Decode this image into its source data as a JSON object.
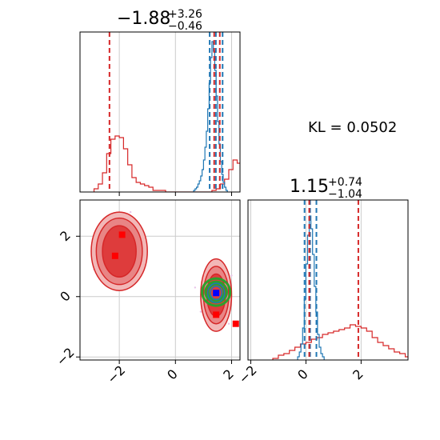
{
  "chart_data": {
    "type": "corner",
    "annotation": "KL = 0.0502",
    "colors": {
      "red": "#d62728",
      "blue": "#1f77b4",
      "green": "#2ca02c",
      "grid": "#cccccc",
      "red_fill_light": "#f2b7b7",
      "red_fill_mid": "#e88585",
      "red_fill_dark": "#de3c3c"
    },
    "grid": true,
    "panels": [
      {
        "id": "marginal-x",
        "type": "histogram",
        "title_main": "−1.88",
        "title_sup": "+3.26",
        "title_sub": "−0.46",
        "xlim": [
          -3.4,
          2.3
        ],
        "ylim": [
          0,
          1.0
        ],
        "red_hist": {
          "bin_width": 0.15,
          "start": -2.9,
          "values": [
            0.02,
            0.05,
            0.12,
            0.24,
            0.33,
            0.35,
            0.34,
            0.27,
            0.17,
            0.09,
            0.06,
            0.05,
            0.04,
            0.03,
            0.01,
            0.01,
            0.01,
            0.0,
            0.0,
            0.0,
            0.0,
            0.0,
            0.0,
            0.0,
            0.0,
            0.0,
            0.0,
            0.0,
            0.01,
            0.02,
            0.05,
            0.08,
            0.14,
            0.2,
            0.18,
            0.12,
            0.06,
            0.03,
            0.01
          ]
        },
        "blue_hist": {
          "bin_width": 0.05,
          "start": 0.65,
          "values": [
            0.01,
            0.02,
            0.03,
            0.05,
            0.07,
            0.1,
            0.14,
            0.2,
            0.28,
            0.38,
            0.52,
            0.68,
            0.84,
            0.94,
            0.88,
            0.76,
            0.6,
            0.44,
            0.3,
            0.19,
            0.11,
            0.06,
            0.03,
            0.01
          ]
        },
        "red_lines": [
          -2.35,
          1.38,
          1.58
        ],
        "blue_lines": [
          1.22,
          1.44,
          1.68
        ]
      },
      {
        "id": "joint",
        "type": "contour",
        "xlim": [
          -3.4,
          2.3
        ],
        "ylim": [
          -2.1,
          3.2
        ],
        "xticks": [
          -2,
          0,
          2
        ],
        "yticks": [
          -2,
          0,
          2
        ],
        "red_mode_a": {
          "center": [
            -2.0,
            1.5
          ],
          "radii": [
            [
              1.0,
              1.3
            ],
            [
              0.82,
              1.1
            ],
            [
              0.6,
              0.85
            ]
          ]
        },
        "red_mode_b": {
          "center": [
            1.45,
            0.05
          ],
          "radii": [
            [
              0.55,
              1.2
            ],
            [
              0.45,
              0.95
            ],
            [
              0.33,
              0.7
            ]
          ]
        },
        "blue_core": {
          "center": [
            1.45,
            0.12
          ],
          "radii": [
            [
              0.3,
              0.32
            ],
            [
              0.2,
              0.22
            ]
          ]
        },
        "green_core": {
          "center": [
            1.45,
            0.15
          ],
          "radii": [
            [
              0.5,
              0.45
            ],
            [
              0.38,
              0.34
            ],
            [
              0.28,
              0.26
            ]
          ]
        },
        "red_markers": [
          [
            -1.9,
            2.05
          ],
          [
            -2.15,
            1.35
          ],
          [
            1.45,
            -0.6
          ],
          [
            2.15,
            -0.9
          ]
        ],
        "blue_marker": [
          1.45,
          0.12
        ]
      },
      {
        "id": "marginal-y",
        "type": "histogram",
        "title_main": "1.15",
        "title_sup": "+0.74",
        "title_sub": "−1.04",
        "xlim": [
          -2.1,
          3.7
        ],
        "ylim": [
          0,
          1.0
        ],
        "xticks": [
          -2,
          0,
          2
        ],
        "red_hist": {
          "bin_width": 0.2,
          "start": -1.2,
          "values": [
            0.01,
            0.03,
            0.04,
            0.06,
            0.08,
            0.1,
            0.11,
            0.13,
            0.14,
            0.16,
            0.17,
            0.18,
            0.19,
            0.2,
            0.22,
            0.21,
            0.2,
            0.18,
            0.14,
            0.11,
            0.09,
            0.07,
            0.05,
            0.04,
            0.02
          ]
        },
        "blue_hist": {
          "bin_width": 0.06,
          "start": -0.3,
          "values": [
            0.02,
            0.05,
            0.1,
            0.2,
            0.38,
            0.6,
            0.78,
            0.9,
            0.82,
            0.66,
            0.46,
            0.3,
            0.16,
            0.08,
            0.04,
            0.02
          ]
        },
        "red_lines": [
          0.12,
          1.9
        ],
        "blue_lines": [
          -0.05,
          0.15,
          0.38
        ]
      }
    ]
  }
}
